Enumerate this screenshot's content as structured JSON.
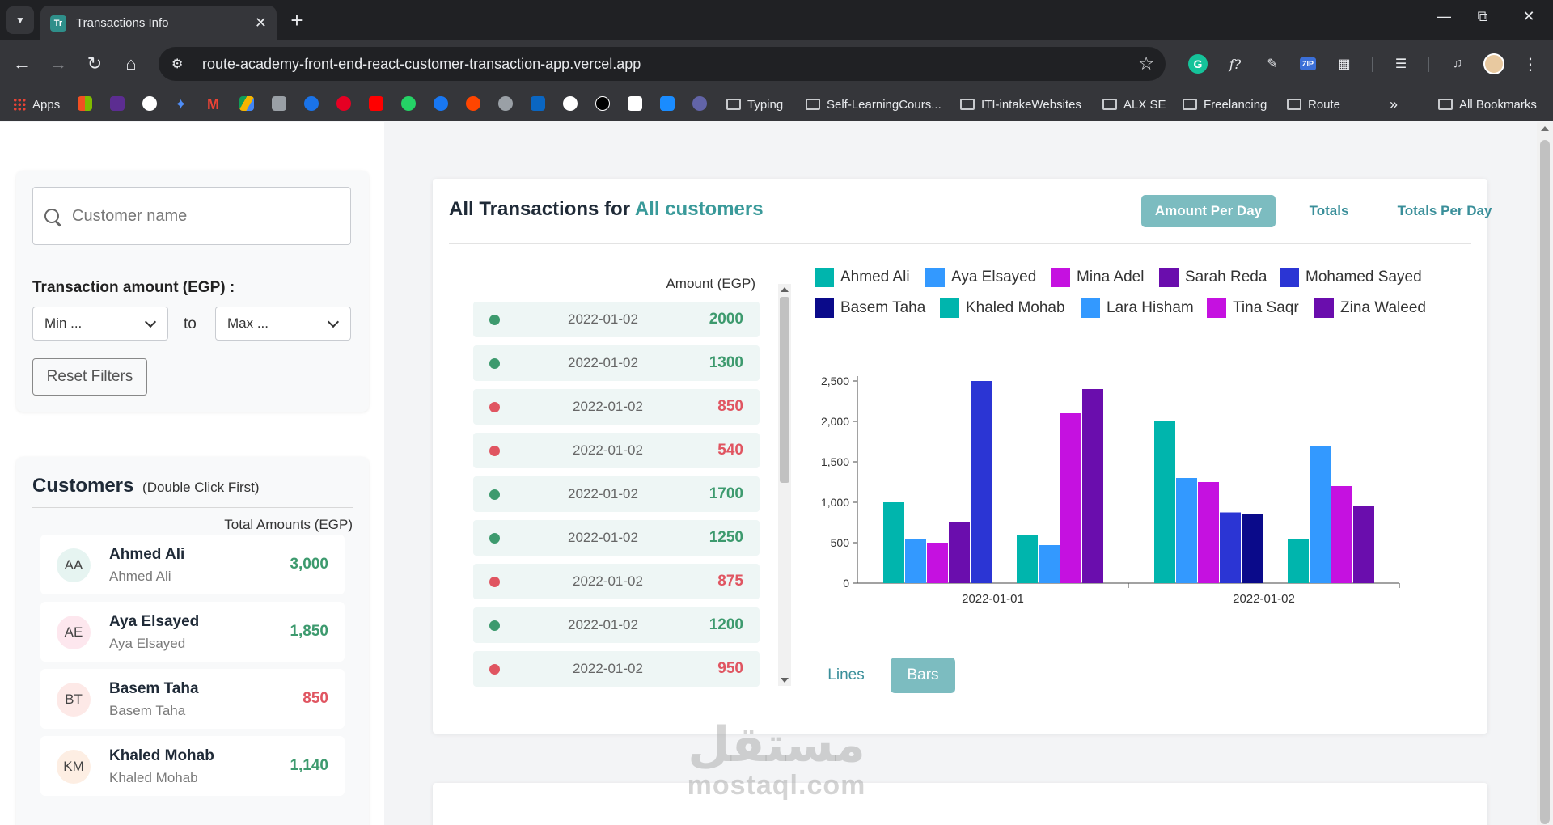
{
  "browser": {
    "tab_title": "Transactions Info",
    "favicon_text": "Tr",
    "url": "route-academy-front-end-react-customer-transaction-app.vercel.app",
    "bookmarks": {
      "apps": "Apps",
      "folders": [
        "Typing",
        "Self-LearningCours...",
        "ITI-intakeWebsites",
        "ALX SE",
        "Freelancing",
        "Route"
      ],
      "all": "All Bookmarks"
    }
  },
  "filters": {
    "search_placeholder": "Customer name",
    "amount_label": "Transaction amount (EGP) :",
    "min_placeholder": "Min ...",
    "to_label": "to",
    "max_placeholder": "Max ...",
    "reset_label": "Reset Filters"
  },
  "customers": {
    "title": "Customers",
    "subtitle": "(Double Click First)",
    "col_header": "Total Amounts (EGP)",
    "items": [
      {
        "initials": "AA",
        "name": "Ahmed Ali",
        "subname": "Ahmed Ali",
        "total": "3,000",
        "status": "positive"
      },
      {
        "initials": "AE",
        "name": "Aya Elsayed",
        "subname": "Aya Elsayed",
        "total": "1,850",
        "status": "positive"
      },
      {
        "initials": "BT",
        "name": "Basem Taha",
        "subname": "Basem Taha",
        "total": "850",
        "status": "negative"
      },
      {
        "initials": "KM",
        "name": "Khaled Mohab",
        "subname": "Khaled Mohab",
        "total": "1,140",
        "status": "positive"
      }
    ]
  },
  "main": {
    "title_prefix": "All Transactions for",
    "title_accent": "All customers",
    "tabs": [
      "Amount Per Day",
      "Totals",
      "Totals Per Day"
    ],
    "active_tab": "Amount Per Day",
    "tx_header": "Amount (EGP)",
    "transactions": [
      {
        "date": "2022-01-02",
        "amount": "2000",
        "status": "positive"
      },
      {
        "date": "2022-01-02",
        "amount": "1300",
        "status": "positive"
      },
      {
        "date": "2022-01-02",
        "amount": "850",
        "status": "negative"
      },
      {
        "date": "2022-01-02",
        "amount": "540",
        "status": "negative"
      },
      {
        "date": "2022-01-02",
        "amount": "1700",
        "status": "positive"
      },
      {
        "date": "2022-01-02",
        "amount": "1250",
        "status": "positive"
      },
      {
        "date": "2022-01-02",
        "amount": "875",
        "status": "negative"
      },
      {
        "date": "2022-01-02",
        "amount": "1200",
        "status": "positive"
      },
      {
        "date": "2022-01-02",
        "amount": "950",
        "status": "negative"
      }
    ],
    "chart_buttons": [
      "Lines",
      "Bars"
    ],
    "active_chart_button": "Bars"
  },
  "colors": {
    "positive": "#3d9a6e",
    "negative": "#e05561",
    "accent": "#3a9a9a",
    "active_tab_bg": "#7cbcc0"
  },
  "chart_data": {
    "type": "bar",
    "categories": [
      "2022-01-01",
      "2022-01-02"
    ],
    "ylim": [
      0,
      2500
    ],
    "yticks": [
      "0",
      "500",
      "1,000",
      "1,500",
      "2,000",
      "2,500"
    ],
    "legend_position": "top",
    "series": [
      {
        "name": "Ahmed Ali",
        "color": "#00b5ad"
      },
      {
        "name": "Aya Elsayed",
        "color": "#3399ff"
      },
      {
        "name": "Mina Adel",
        "color": "#c511e0"
      },
      {
        "name": "Sarah Reda",
        "color": "#6a0dad"
      },
      {
        "name": "Mohamed Sayed",
        "color": "#2b35d4"
      },
      {
        "name": "Basem Taha",
        "color": "#0a0a8a"
      },
      {
        "name": "Khaled Mohab",
        "color": "#00b5ad"
      },
      {
        "name": "Lara Hisham",
        "color": "#3399ff"
      },
      {
        "name": "Tina Saqr",
        "color": "#c511e0"
      },
      {
        "name": "Zina Waleed",
        "color": "#6a0dad"
      }
    ],
    "bars": [
      {
        "category": "2022-01-01",
        "series": "Ahmed Ali",
        "value": 1000
      },
      {
        "category": "2022-01-01",
        "series": "Aya Elsayed",
        "value": 550
      },
      {
        "category": "2022-01-01",
        "series": "Mina Adel",
        "value": 500
      },
      {
        "category": "2022-01-01",
        "series": "Sarah Reda",
        "value": 750
      },
      {
        "category": "2022-01-01",
        "series": "Mohamed Sayed",
        "value": 2500
      },
      {
        "category": "2022-01-01",
        "series": "Khaled Mohab",
        "value": 600
      },
      {
        "category": "2022-01-01",
        "series": "Lara Hisham",
        "value": 470
      },
      {
        "category": "2022-01-01",
        "series": "Tina Saqr",
        "value": 2100
      },
      {
        "category": "2022-01-01",
        "series": "Zina Waleed",
        "value": 2400
      },
      {
        "category": "2022-01-02",
        "series": "Ahmed Ali",
        "value": 2000
      },
      {
        "category": "2022-01-02",
        "series": "Aya Elsayed",
        "value": 1300
      },
      {
        "category": "2022-01-02",
        "series": "Mina Adel",
        "value": 1250
      },
      {
        "category": "2022-01-02",
        "series": "Mohamed Sayed",
        "value": 875
      },
      {
        "category": "2022-01-02",
        "series": "Basem Taha",
        "value": 850
      },
      {
        "category": "2022-01-02",
        "series": "Khaled Mohab",
        "value": 540
      },
      {
        "category": "2022-01-02",
        "series": "Lara Hisham",
        "value": 1700
      },
      {
        "category": "2022-01-02",
        "series": "Tina Saqr",
        "value": 1200
      },
      {
        "category": "2022-01-02",
        "series": "Zina Waleed",
        "value": 950
      }
    ]
  },
  "watermark": {
    "arabic": "مستقل",
    "latin": "mostaql.com"
  }
}
